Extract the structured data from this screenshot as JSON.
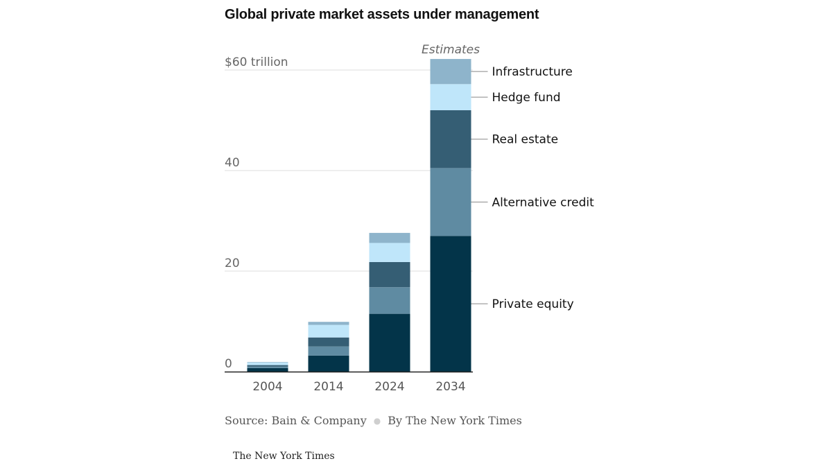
{
  "chart_data": {
    "type": "bar",
    "stacked": true,
    "title": "Global private market assets under management",
    "categories": [
      "2004",
      "2014",
      "2024",
      "2034"
    ],
    "series": [
      {
        "name": "Private equity",
        "color": "#033449",
        "values": [
          0.7,
          3.2,
          11.5,
          27.0
        ]
      },
      {
        "name": "Alternative credit",
        "color": "#5f8ba2",
        "values": [
          0.3,
          1.8,
          5.3,
          13.5
        ]
      },
      {
        "name": "Real estate",
        "color": "#355e74",
        "values": [
          0.3,
          1.8,
          5.0,
          11.5
        ]
      },
      {
        "name": "Hedge fund",
        "color": "#bfe6fa",
        "values": [
          0.5,
          2.5,
          3.8,
          5.2
        ]
      },
      {
        "name": "Infrastructure",
        "color": "#8eb4cb",
        "values": [
          0.1,
          0.6,
          2.0,
          5.0
        ]
      }
    ],
    "ylim": [
      0,
      62
    ],
    "yticks": [
      0,
      20,
      40,
      60
    ],
    "ytick_labels": [
      "0",
      "20",
      "40",
      "$60 trillion"
    ],
    "grid": true,
    "legend_placement": "right, labels aligned to the 2034 bar segments",
    "annotations": [
      "Estimates"
    ]
  },
  "footer": {
    "source": "Source: Bain & Company",
    "credit": "By The New York Times"
  },
  "brand": "The New York Times"
}
